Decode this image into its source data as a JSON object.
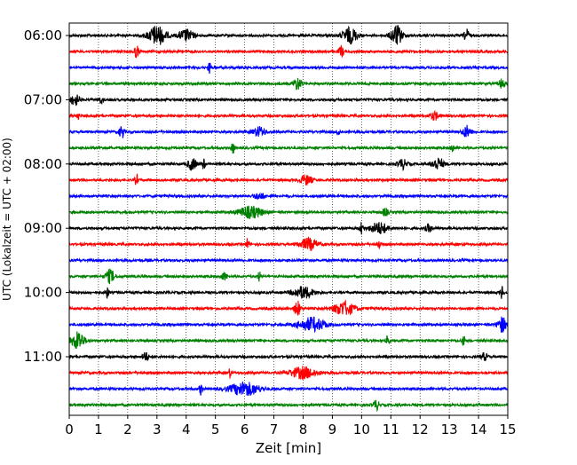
{
  "chart_data": {
    "type": "line",
    "title": "",
    "xlabel": "Zeit  [min]",
    "ylabel": "UTC (Lokalzeit = UTC + 02:00)",
    "xlim": [
      0,
      15
    ],
    "x_ticks": [
      "0",
      "1",
      "2",
      "3",
      "4",
      "5",
      "6",
      "7",
      "8",
      "9",
      "10",
      "11",
      "12",
      "13",
      "14",
      "15"
    ],
    "y_ticks": [
      "06:00",
      "07:00",
      "08:00",
      "09:00",
      "10:00",
      "11:00"
    ],
    "grid": "vertical-dotted",
    "trace_interval_minutes": 15,
    "trace_color_cycle": [
      "#000000",
      "#ff0000",
      "#0000ff",
      "#008000"
    ],
    "traces": [
      {
        "start": "06:00",
        "color": "#000000",
        "bursts": [
          [
            3.0,
            0.3,
            1.0
          ],
          [
            4.0,
            0.25,
            0.6
          ],
          [
            9.6,
            0.25,
            0.8
          ],
          [
            11.2,
            0.2,
            1.0
          ],
          [
            13.6,
            0.1,
            0.6
          ]
        ]
      },
      {
        "start": "06:15",
        "color": "#ff0000",
        "bursts": [
          [
            2.3,
            0.08,
            0.6
          ],
          [
            9.3,
            0.08,
            0.6
          ]
        ]
      },
      {
        "start": "06:30",
        "color": "#0000ff",
        "bursts": [
          [
            4.8,
            0.06,
            0.5
          ]
        ]
      },
      {
        "start": "06:45",
        "color": "#008000",
        "bursts": [
          [
            7.8,
            0.15,
            0.6
          ],
          [
            14.8,
            0.1,
            0.5
          ]
        ]
      },
      {
        "start": "07:00",
        "color": "#000000",
        "bursts": [
          [
            0.2,
            0.15,
            0.6
          ],
          [
            1.1,
            0.05,
            0.5
          ]
        ]
      },
      {
        "start": "07:15",
        "color": "#ff0000",
        "bursts": [
          [
            0.3,
            0.05,
            0.4
          ],
          [
            12.5,
            0.15,
            0.4
          ]
        ]
      },
      {
        "start": "07:30",
        "color": "#0000ff",
        "bursts": [
          [
            1.8,
            0.08,
            0.7
          ],
          [
            6.5,
            0.2,
            0.5
          ],
          [
            9.2,
            0.05,
            0.5
          ],
          [
            13.6,
            0.15,
            0.6
          ]
        ]
      },
      {
        "start": "07:45",
        "color": "#008000",
        "bursts": [
          [
            5.6,
            0.05,
            0.6
          ],
          [
            13.1,
            0.05,
            0.5
          ]
        ]
      },
      {
        "start": "08:00",
        "color": "#000000",
        "bursts": [
          [
            4.2,
            0.15,
            0.6
          ],
          [
            4.6,
            0.05,
            0.6
          ],
          [
            11.4,
            0.15,
            0.5
          ],
          [
            12.6,
            0.2,
            0.6
          ]
        ]
      },
      {
        "start": "08:15",
        "color": "#ff0000",
        "bursts": [
          [
            2.3,
            0.05,
            0.6
          ],
          [
            8.1,
            0.2,
            0.5
          ]
        ]
      },
      {
        "start": "08:30",
        "color": "#0000ff",
        "bursts": [
          [
            6.5,
            0.2,
            0.3
          ]
        ]
      },
      {
        "start": "08:45",
        "color": "#008000",
        "bursts": [
          [
            6.2,
            0.4,
            0.6
          ],
          [
            10.8,
            0.1,
            0.4
          ]
        ]
      },
      {
        "start": "09:00",
        "color": "#000000",
        "bursts": [
          [
            10.0,
            0.05,
            0.7
          ],
          [
            10.6,
            0.3,
            0.6
          ],
          [
            12.3,
            0.1,
            0.4
          ]
        ]
      },
      {
        "start": "09:15",
        "color": "#ff0000",
        "bursts": [
          [
            6.1,
            0.05,
            0.6
          ],
          [
            8.2,
            0.3,
            0.6
          ],
          [
            10.6,
            0.05,
            0.5
          ]
        ]
      },
      {
        "start": "09:30",
        "color": "#0000ff",
        "bursts": []
      },
      {
        "start": "09:45",
        "color": "#008000",
        "bursts": [
          [
            1.4,
            0.15,
            0.7
          ],
          [
            5.3,
            0.1,
            0.4
          ],
          [
            6.5,
            0.05,
            0.5
          ]
        ]
      },
      {
        "start": "10:00",
        "color": "#000000",
        "bursts": [
          [
            1.3,
            0.05,
            0.6
          ],
          [
            8.0,
            0.35,
            0.6
          ],
          [
            14.8,
            0.05,
            0.7
          ]
        ]
      },
      {
        "start": "10:15",
        "color": "#ff0000",
        "bursts": [
          [
            7.8,
            0.1,
            0.8
          ],
          [
            9.4,
            0.35,
            0.7
          ]
        ]
      },
      {
        "start": "10:30",
        "color": "#0000ff",
        "bursts": [
          [
            8.3,
            0.45,
            0.7
          ],
          [
            14.8,
            0.15,
            0.8
          ]
        ]
      },
      {
        "start": "10:45",
        "color": "#008000",
        "bursts": [
          [
            0.3,
            0.2,
            1.0
          ],
          [
            10.9,
            0.05,
            0.6
          ],
          [
            13.5,
            0.05,
            0.6
          ]
        ]
      },
      {
        "start": "11:00",
        "color": "#000000",
        "bursts": [
          [
            2.6,
            0.1,
            0.5
          ],
          [
            14.2,
            0.1,
            0.4
          ]
        ]
      },
      {
        "start": "11:15",
        "color": "#ff0000",
        "bursts": [
          [
            5.5,
            0.05,
            0.5
          ],
          [
            8.0,
            0.45,
            0.6
          ]
        ]
      },
      {
        "start": "11:30",
        "color": "#0000ff",
        "bursts": [
          [
            4.5,
            0.05,
            0.6
          ],
          [
            6.0,
            0.5,
            0.7
          ]
        ]
      },
      {
        "start": "11:45",
        "color": "#008000",
        "bursts": [
          [
            10.5,
            0.1,
            0.5
          ]
        ]
      }
    ]
  }
}
